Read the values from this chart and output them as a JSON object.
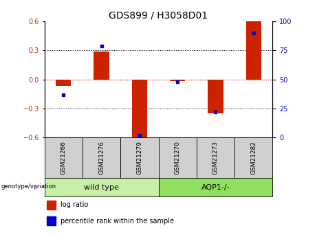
{
  "title": "GDS899 / H3058D01",
  "samples": [
    "GSM21266",
    "GSM21276",
    "GSM21279",
    "GSM21270",
    "GSM21273",
    "GSM21282"
  ],
  "log_ratio": [
    -0.07,
    0.29,
    -0.6,
    -0.02,
    -0.35,
    0.6
  ],
  "percentile_rank": [
    37,
    79,
    2,
    48,
    22,
    90
  ],
  "ylim_left": [
    -0.6,
    0.6
  ],
  "ylim_right": [
    0,
    100
  ],
  "yticks_left": [
    -0.6,
    -0.3,
    0.0,
    0.3,
    0.6
  ],
  "yticks_right": [
    0,
    25,
    50,
    75,
    100
  ],
  "bar_color": "#cc2200",
  "dot_color": "#0000cc",
  "zero_line_color": "#cc2200",
  "dotted_line_color": "#000000",
  "wt_color": "#c8f0a8",
  "aqp_color": "#90e060",
  "sample_box_color": "#d0d0d0",
  "genotype_label": "genotype/variation",
  "legend_items": [
    {
      "label": "log ratio",
      "color": "#cc2200"
    },
    {
      "label": "percentile rank within the sample",
      "color": "#0000cc"
    }
  ],
  "bar_width": 0.4,
  "tick_label_fontsize": 7,
  "title_fontsize": 10,
  "group_label_fontsize": 8,
  "sample_label_fontsize": 6.5
}
